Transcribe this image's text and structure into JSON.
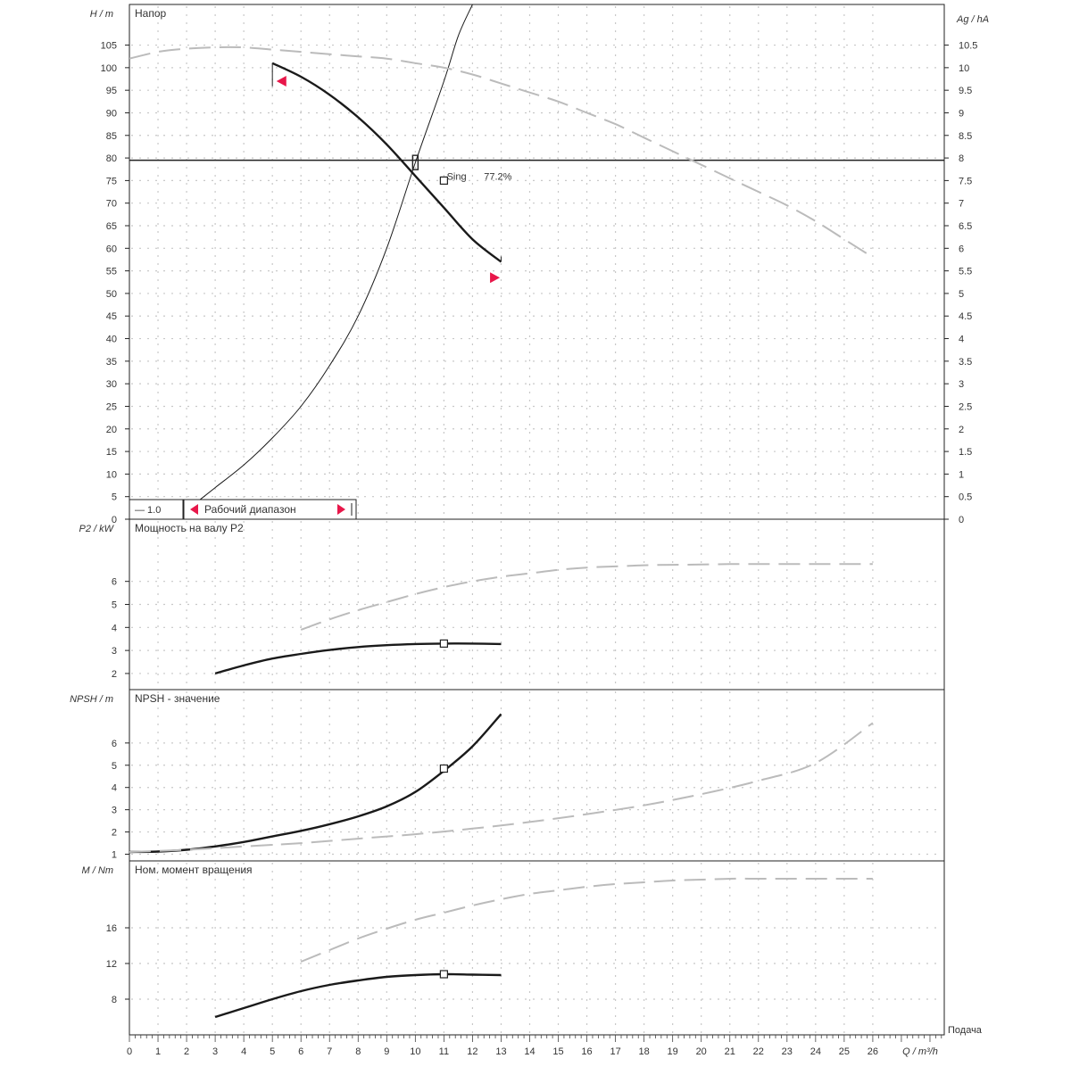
{
  "chart_data": {
    "type": "line",
    "x_axis": {
      "label": "Q / m³/h",
      "range": [
        0,
        28.5
      ],
      "ticks": [
        0,
        1,
        2,
        3,
        4,
        5,
        6,
        7,
        8,
        9,
        10,
        11,
        12,
        13,
        14,
        15,
        16,
        17,
        18,
        19,
        20,
        21,
        22,
        23,
        24,
        25,
        26
      ],
      "corner_label": "Подача"
    },
    "panels": [
      {
        "id": "head",
        "title": "Напор",
        "ylabel": "H / m",
        "ylim": [
          0,
          114
        ],
        "yticks": [
          0,
          5,
          10,
          15,
          20,
          25,
          30,
          35,
          40,
          45,
          50,
          55,
          60,
          65,
          70,
          75,
          80,
          85,
          90,
          95,
          100,
          105
        ],
        "y2label": "Ag / hA",
        "y2lim": [
          0,
          11.4
        ],
        "y2ticks": [
          "0",
          "0.5",
          "1",
          "1.5",
          "2",
          "2.5",
          "3",
          "3.5",
          "4",
          "4.5",
          "5",
          "5.5",
          "6",
          "6.5",
          "7",
          "7.5",
          "8",
          "8.5",
          "9",
          "9.5",
          "10",
          "10.5"
        ],
        "y2tick_values": [
          0,
          0.5,
          1,
          1.5,
          2,
          2.5,
          3,
          3.5,
          4,
          4.5,
          5,
          5.5,
          6,
          6.5,
          7,
          7.5,
          8,
          8.5,
          9,
          9.5,
          10,
          10.5
        ],
        "reference_line_y": 79.5,
        "series": [
          {
            "style": "bold",
            "x": [
              5,
              6,
              7,
              8,
              9,
              10,
              11,
              12,
              13
            ],
            "y": [
              101,
              98,
              94,
              89,
              83,
              76,
              69,
              62,
              57
            ]
          },
          {
            "style": "thin",
            "x": [
              2.4,
              3,
              4,
              5,
              6,
              7,
              8,
              9,
              10,
              11,
              11.5,
              12
            ],
            "y": [
              4,
              7,
              12,
              18,
              25,
              34,
              45,
              60,
              79,
              97,
              107,
              114
            ]
          },
          {
            "style": "dashed",
            "x": [
              0,
              1,
              2,
              3,
              4,
              5,
              6,
              7,
              8,
              9,
              10,
              11,
              12,
              13,
              14,
              15,
              16,
              17,
              18,
              19,
              20,
              21,
              22,
              23,
              24,
              25,
              26
            ],
            "y": [
              10.2,
              10.35,
              10.42,
              10.45,
              10.45,
              10.4,
              10.35,
              10.3,
              10.25,
              10.2,
              10.1,
              10.0,
              9.85,
              9.65,
              9.45,
              9.25,
              9.0,
              8.75,
              8.45,
              8.15,
              7.85,
              7.55,
              7.25,
              6.95,
              6.6,
              6.2,
              5.8
            ],
            "axis": "right"
          }
        ],
        "operating_point": {
          "x": 10,
          "y": 79
        },
        "annotations": [
          {
            "text": "Sing",
            "x": 11.1,
            "y": 77.5
          },
          {
            "text": "77.2%",
            "x": 12.4,
            "y": 77.5
          }
        ],
        "points": [
          {
            "x": 11,
            "y": 75
          }
        ],
        "range_markers": [
          {
            "x": 5.3,
            "y": 97,
            "dir": "left"
          },
          {
            "x": 12.8,
            "y": 53.5,
            "dir": "right"
          }
        ],
        "legend": {
          "item1": "— 1.0",
          "item2": "Рабочий диапазон"
        }
      },
      {
        "id": "power",
        "title": "Мощность на валу P2",
        "ylabel": "P2 / kW",
        "ylim": [
          1.3,
          8.7
        ],
        "yticks": [
          2,
          3,
          4,
          5,
          6
        ],
        "ytick_labels": [
          "2",
          "3",
          "4",
          "5",
          "6"
        ],
        "series": [
          {
            "style": "bold",
            "x": [
              3,
              4,
              5,
              6,
              7,
              8,
              9,
              10,
              11,
              12,
              13
            ],
            "y": [
              2.0,
              2.35,
              2.65,
              2.85,
              3.02,
              3.15,
              3.23,
              3.28,
              3.3,
              3.3,
              3.28
            ]
          },
          {
            "style": "dashed",
            "x": [
              6,
              7,
              8,
              9,
              10,
              11,
              12,
              13,
              14,
              15,
              16,
              17,
              18,
              19,
              20,
              21,
              22,
              23,
              24,
              25,
              26
            ],
            "y": [
              3.9,
              4.35,
              4.75,
              5.1,
              5.45,
              5.75,
              6.0,
              6.2,
              6.35,
              6.5,
              6.6,
              6.65,
              6.7,
              6.72,
              6.73,
              6.75,
              6.75,
              6.75,
              6.75,
              6.75,
              6.75
            ]
          }
        ],
        "points": [
          {
            "x": 11,
            "y": 3.3
          }
        ]
      },
      {
        "id": "npsh",
        "title": "NPSH - значение",
        "ylabel": "NPSH / m",
        "ylim": [
          0.7,
          8.4
        ],
        "yticks": [
          1,
          2,
          3,
          4,
          5,
          6
        ],
        "ytick_labels": [
          "1",
          "2",
          "3",
          "4",
          "5",
          "6"
        ],
        "series": [
          {
            "style": "bold",
            "x": [
              0,
              1,
              2,
              3,
              4,
              5,
              6,
              7,
              8,
              9,
              10,
              11,
              12,
              13
            ],
            "y": [
              1.1,
              1.12,
              1.2,
              1.35,
              1.55,
              1.8,
              2.05,
              2.35,
              2.7,
              3.15,
              3.8,
              4.75,
              5.85,
              7.3
            ]
          },
          {
            "style": "dashed",
            "x": [
              0,
              2,
              4,
              6,
              8,
              10,
              12,
              14,
              16,
              18,
              20,
              22,
              24,
              26
            ],
            "y": [
              1.1,
              1.2,
              1.35,
              1.5,
              1.7,
              1.9,
              2.15,
              2.45,
              2.8,
              3.2,
              3.7,
              4.3,
              5.1,
              6.9
            ]
          }
        ],
        "points": [
          {
            "x": 11,
            "y": 4.85
          }
        ]
      },
      {
        "id": "torque",
        "title": "Ном. момент вращения",
        "ylabel": "M / Nm",
        "ylim": [
          4,
          23.5
        ],
        "yticks": [
          8,
          12,
          16
        ],
        "ytick_labels": [
          "8",
          "12",
          "16"
        ],
        "series": [
          {
            "style": "bold",
            "x": [
              3,
              4,
              5,
              6,
              7,
              8,
              9,
              10,
              11,
              12,
              13
            ],
            "y": [
              6,
              7.0,
              8.0,
              8.9,
              9.6,
              10.1,
              10.5,
              10.7,
              10.8,
              10.75,
              10.7
            ]
          },
          {
            "style": "dashed",
            "x": [
              6,
              7,
              8,
              9,
              10,
              11,
              12,
              13,
              14,
              15,
              16,
              17,
              18,
              19,
              20,
              21,
              22,
              23,
              24,
              25,
              26
            ],
            "y": [
              12.2,
              13.5,
              14.8,
              15.9,
              16.9,
              17.7,
              18.5,
              19.2,
              19.8,
              20.2,
              20.6,
              20.9,
              21.1,
              21.3,
              21.4,
              21.5,
              21.5,
              21.5,
              21.5,
              21.5,
              21.5
            ]
          }
        ],
        "points": [
          {
            "x": 11,
            "y": 10.8
          }
        ]
      }
    ]
  }
}
